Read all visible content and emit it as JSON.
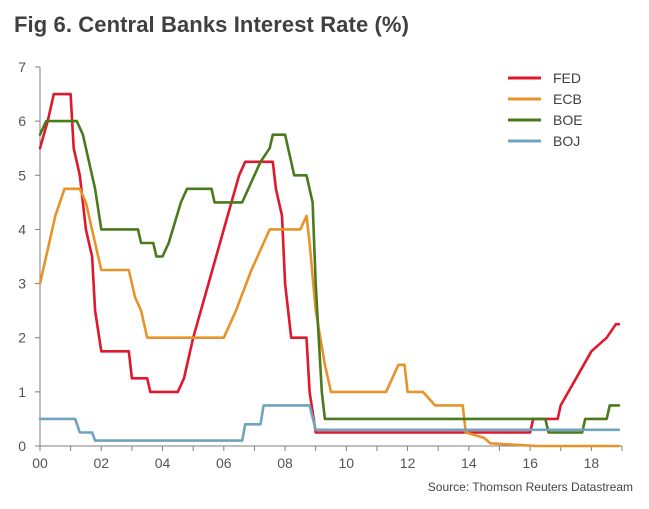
{
  "title": "Fig 6. Central Banks Interest Rate (%)",
  "source": "Source: Thomson Reuters Datastream",
  "chart_data": {
    "type": "line",
    "title": "Fig 6. Central Banks Interest Rate (%)",
    "xlabel": "",
    "ylabel": "",
    "xlim": [
      0,
      19
    ],
    "ylim": [
      0,
      7
    ],
    "x_ticks": [
      "00",
      "02",
      "04",
      "06",
      "08",
      "10",
      "12",
      "14",
      "16",
      "18"
    ],
    "y_ticks": [
      "0",
      "1",
      "2",
      "3",
      "4",
      "5",
      "6",
      "7"
    ],
    "grid": false,
    "legend_position": "top-right",
    "series": [
      {
        "name": "FED",
        "color": "#e0182d",
        "points": [
          [
            0,
            5.5
          ],
          [
            0.25,
            6.0
          ],
          [
            0.45,
            6.5
          ],
          [
            1.0,
            6.5
          ],
          [
            1.1,
            5.5
          ],
          [
            1.3,
            5.0
          ],
          [
            1.5,
            4.0
          ],
          [
            1.7,
            3.5
          ],
          [
            1.8,
            2.5
          ],
          [
            2.0,
            1.75
          ],
          [
            2.9,
            1.75
          ],
          [
            3.0,
            1.25
          ],
          [
            3.5,
            1.25
          ],
          [
            3.6,
            1.0
          ],
          [
            4.5,
            1.0
          ],
          [
            4.7,
            1.25
          ],
          [
            5.0,
            2.0
          ],
          [
            5.5,
            3.0
          ],
          [
            6.0,
            4.0
          ],
          [
            6.5,
            5.0
          ],
          [
            6.7,
            5.25
          ],
          [
            7.6,
            5.25
          ],
          [
            7.7,
            4.75
          ],
          [
            7.9,
            4.25
          ],
          [
            8.0,
            3.0
          ],
          [
            8.2,
            2.0
          ],
          [
            8.7,
            2.0
          ],
          [
            8.8,
            1.0
          ],
          [
            9.0,
            0.25
          ],
          [
            16.0,
            0.25
          ],
          [
            16.1,
            0.5
          ],
          [
            16.9,
            0.5
          ],
          [
            17.0,
            0.75
          ],
          [
            17.5,
            1.25
          ],
          [
            18.0,
            1.75
          ],
          [
            18.5,
            2.0
          ],
          [
            18.8,
            2.25
          ],
          [
            18.9,
            2.25
          ]
        ]
      },
      {
        "name": "ECB",
        "color": "#e8922a",
        "points": [
          [
            0,
            3.0
          ],
          [
            0.3,
            3.75
          ],
          [
            0.5,
            4.25
          ],
          [
            0.8,
            4.75
          ],
          [
            1.3,
            4.75
          ],
          [
            1.5,
            4.5
          ],
          [
            1.8,
            3.75
          ],
          [
            2.0,
            3.25
          ],
          [
            2.9,
            3.25
          ],
          [
            3.1,
            2.75
          ],
          [
            3.3,
            2.5
          ],
          [
            3.5,
            2.0
          ],
          [
            6.0,
            2.0
          ],
          [
            6.4,
            2.5
          ],
          [
            6.9,
            3.25
          ],
          [
            7.3,
            3.75
          ],
          [
            7.5,
            4.0
          ],
          [
            8.5,
            4.0
          ],
          [
            8.7,
            4.25
          ],
          [
            8.8,
            3.75
          ],
          [
            9.0,
            2.5
          ],
          [
            9.3,
            1.5
          ],
          [
            9.5,
            1.0
          ],
          [
            11.3,
            1.0
          ],
          [
            11.5,
            1.25
          ],
          [
            11.7,
            1.5
          ],
          [
            11.9,
            1.5
          ],
          [
            12.0,
            1.0
          ],
          [
            12.5,
            1.0
          ],
          [
            12.9,
            0.75
          ],
          [
            13.8,
            0.75
          ],
          [
            13.9,
            0.25
          ],
          [
            14.5,
            0.15
          ],
          [
            14.7,
            0.05
          ],
          [
            16.2,
            0.0
          ],
          [
            18.9,
            0.0
          ]
        ]
      },
      {
        "name": "BOE",
        "color": "#4b7a1c",
        "points": [
          [
            0,
            5.75
          ],
          [
            0.2,
            6.0
          ],
          [
            1.2,
            6.0
          ],
          [
            1.4,
            5.75
          ],
          [
            1.6,
            5.25
          ],
          [
            1.8,
            4.75
          ],
          [
            2.0,
            4.0
          ],
          [
            3.2,
            4.0
          ],
          [
            3.3,
            3.75
          ],
          [
            3.7,
            3.75
          ],
          [
            3.8,
            3.5
          ],
          [
            4.0,
            3.5
          ],
          [
            4.2,
            3.75
          ],
          [
            4.6,
            4.5
          ],
          [
            4.8,
            4.75
          ],
          [
            5.6,
            4.75
          ],
          [
            5.7,
            4.5
          ],
          [
            6.6,
            4.5
          ],
          [
            6.8,
            4.75
          ],
          [
            7.0,
            5.0
          ],
          [
            7.2,
            5.25
          ],
          [
            7.5,
            5.5
          ],
          [
            7.6,
            5.75
          ],
          [
            8.0,
            5.75
          ],
          [
            8.1,
            5.5
          ],
          [
            8.3,
            5.0
          ],
          [
            8.7,
            5.0
          ],
          [
            8.9,
            4.5
          ],
          [
            9.0,
            3.0
          ],
          [
            9.1,
            2.0
          ],
          [
            9.2,
            1.0
          ],
          [
            9.3,
            0.5
          ],
          [
            16.5,
            0.5
          ],
          [
            16.6,
            0.25
          ],
          [
            17.7,
            0.25
          ],
          [
            17.8,
            0.5
          ],
          [
            18.5,
            0.5
          ],
          [
            18.6,
            0.75
          ],
          [
            18.9,
            0.75
          ]
        ]
      },
      {
        "name": "BOJ",
        "color": "#6fa3bf",
        "points": [
          [
            0,
            0.5
          ],
          [
            1.15,
            0.5
          ],
          [
            1.3,
            0.25
          ],
          [
            1.7,
            0.25
          ],
          [
            1.8,
            0.1
          ],
          [
            6.6,
            0.1
          ],
          [
            6.7,
            0.4
          ],
          [
            7.2,
            0.4
          ],
          [
            7.3,
            0.75
          ],
          [
            8.8,
            0.75
          ],
          [
            9.0,
            0.3
          ],
          [
            16.0,
            0.3
          ],
          [
            16.3,
            0.3
          ],
          [
            18.9,
            0.3
          ]
        ]
      }
    ]
  }
}
